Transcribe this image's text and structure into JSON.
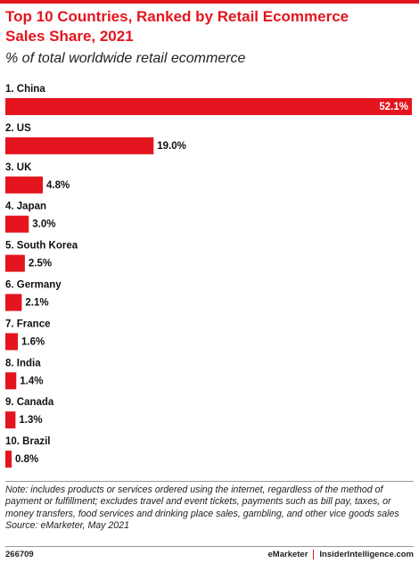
{
  "chart_data": {
    "type": "hbar",
    "title": "Top 10 Countries, Ranked by Retail Ecommerce Sales Share, 2021",
    "subtitle": "% of total worldwide retail ecommerce",
    "categories": [
      "1. China",
      "2. US",
      "3. UK",
      "4. Japan",
      "5. South Korea",
      "6. Germany",
      "7. France",
      "8. India",
      "9. Canada",
      "10. Brazil"
    ],
    "values": [
      52.1,
      19.0,
      4.8,
      3.0,
      2.5,
      2.1,
      1.6,
      1.4,
      1.3,
      0.8
    ],
    "value_labels": [
      "52.1%",
      "19.0%",
      "4.8%",
      "3.0%",
      "2.5%",
      "2.1%",
      "1.6%",
      "1.4%",
      "1.3%",
      "0.8%"
    ],
    "color": "#e4151f",
    "note": "Note: includes products or services ordered using the internet, regardless of the method of payment or fulfillment; excludes travel and event tickets, payments such as bill pay, taxes, or money transfers, food services and drinking place sales, gambling, and other vice goods sales",
    "source": "Source: eMarketer, May 2021",
    "chart_id": "266709",
    "brand": "eMarketer",
    "website": "InsiderIntelligence.com"
  }
}
